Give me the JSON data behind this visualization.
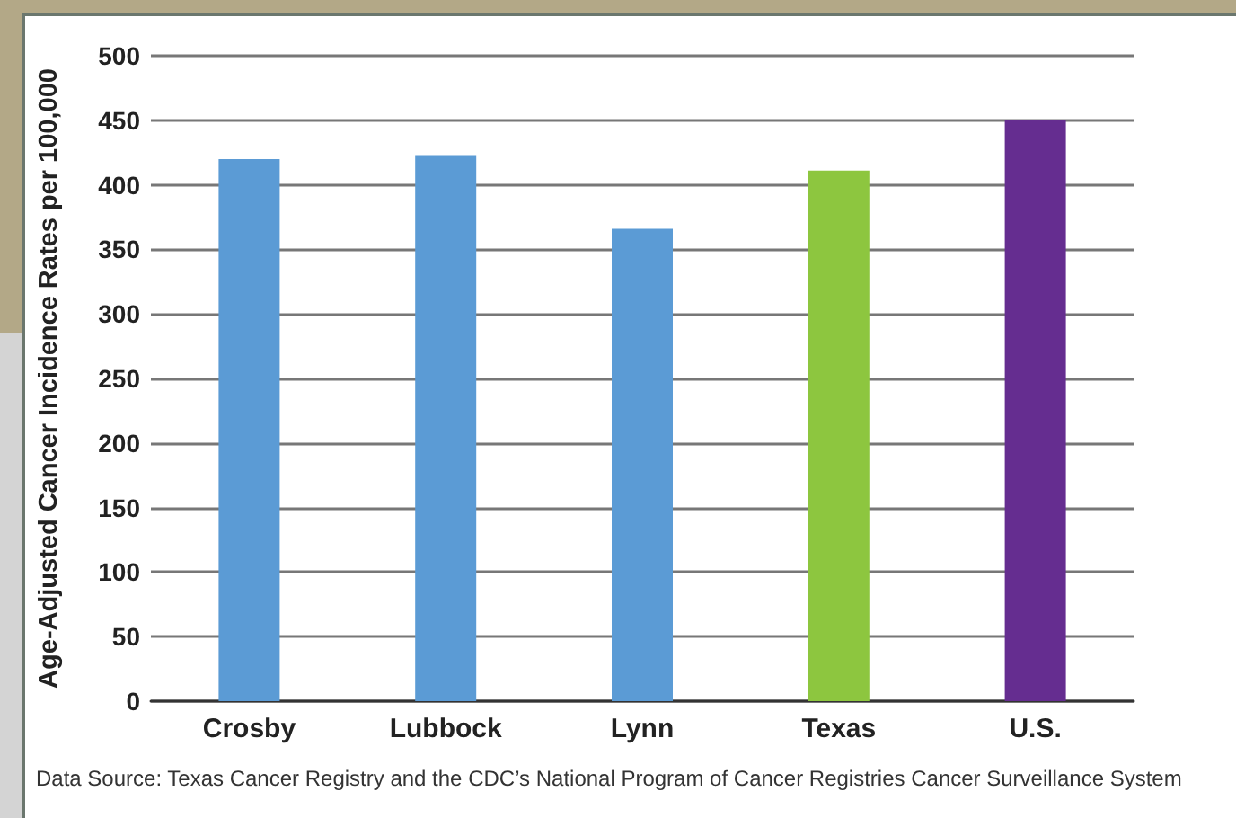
{
  "chart_data": {
    "type": "bar",
    "categories": [
      "Crosby",
      "Lubbock",
      "Lynn",
      "Texas",
      "U.S."
    ],
    "values": [
      420,
      423,
      366,
      411,
      450
    ],
    "colors": [
      "#5b9bd5",
      "#5b9bd5",
      "#5b9bd5",
      "#8dc63f",
      "#652d90"
    ],
    "ylabel": "Age-Adjusted Cancer Incidence Rates per 100,000",
    "ylim": [
      0,
      500
    ],
    "yticks": [
      0,
      50,
      100,
      150,
      200,
      250,
      300,
      350,
      400,
      450,
      500
    ],
    "grid": "y",
    "annotations": [
      "Data Source: Texas Cancer Registry and the CDC’s National Program of Cancer Registries Cancer Surveillance System"
    ]
  }
}
